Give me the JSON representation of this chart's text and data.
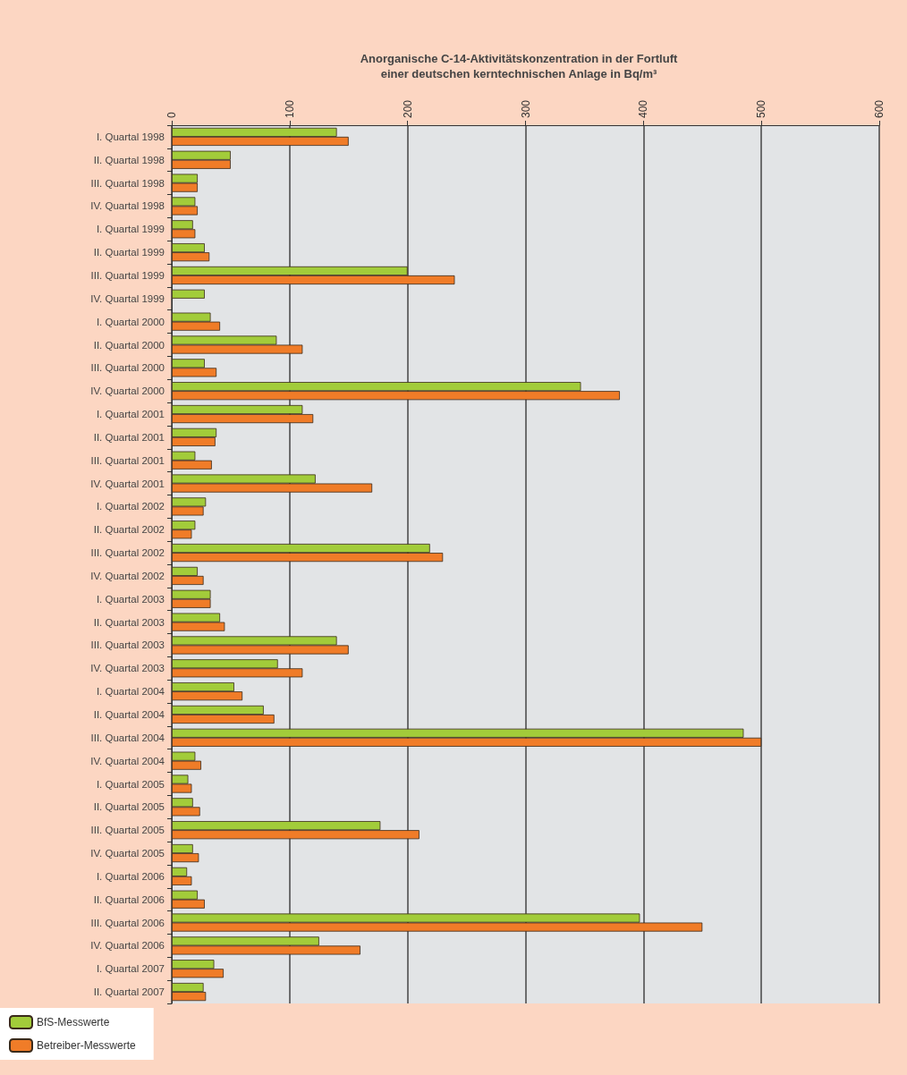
{
  "chart_data": {
    "type": "bar",
    "orientation": "horizontal",
    "title": "Anorganische C-14-Aktivitätskonzentration in der Fortluft\neiner deutschen kerntechnischen Anlage in Bq/m³",
    "categories": [
      "I. Quartal 1998",
      "II. Quartal 1998",
      "III. Quartal 1998",
      "IV. Quartal 1998",
      "I. Quartal 1999",
      "II. Quartal 1999",
      "III. Quartal 1999",
      "IV. Quartal 1999",
      "I. Quartal 2000",
      "II. Quartal 2000",
      "III. Quartal 2000",
      "IV. Quartal 2000",
      "I. Quartal 2001",
      "II. Quartal 2001",
      "III. Quartal 2001",
      "IV. Quartal 2001",
      "I. Quartal 2002",
      "II. Quartal 2002",
      "III. Quartal 2002",
      "IV. Quartal 2002",
      "I. Quartal 2003",
      "II. Quartal 2003",
      "III. Quartal 2003",
      "IV. Quartal 2003",
      "I. Quartal 2004",
      "II. Quartal 2004",
      "III. Quartal 2004",
      "IV. Quartal 2004",
      "I. Quartal 2005",
      "II. Quartal 2005",
      "III. Quartal 2005",
      "IV. Quartal 2005",
      "I. Quartal 2006",
      "II. Quartal 2006",
      "III. Quartal 2006",
      "IV. Quartal 2006",
      "I. Quartal 2007",
      "II. Quartal 2007"
    ],
    "series": [
      {
        "name": "BfS-Messwerte",
        "color": "#a2cc3a",
        "values": [
          140,
          50,
          22,
          20,
          18,
          28,
          200,
          28,
          33,
          89,
          28,
          347,
          111,
          38,
          20,
          122,
          29,
          20,
          219,
          22,
          33,
          41,
          140,
          90,
          53,
          78,
          485,
          20,
          14,
          18,
          177,
          18,
          13,
          22,
          397,
          125,
          36,
          27
        ]
      },
      {
        "name": "Betreiber-Messwerte",
        "color": "#f07c28",
        "values": [
          150,
          50,
          22,
          22,
          20,
          32,
          240,
          null,
          41,
          111,
          38,
          380,
          120,
          37,
          34,
          170,
          27,
          17,
          230,
          27,
          33,
          45,
          150,
          111,
          60,
          87,
          500,
          25,
          17,
          24,
          210,
          23,
          17,
          28,
          450,
          160,
          44,
          29
        ]
      }
    ],
    "xlim": [
      0,
      600
    ],
    "xticks": [
      0,
      100,
      200,
      300,
      400,
      500,
      600
    ],
    "grid": "x",
    "legend": "bottom left"
  }
}
